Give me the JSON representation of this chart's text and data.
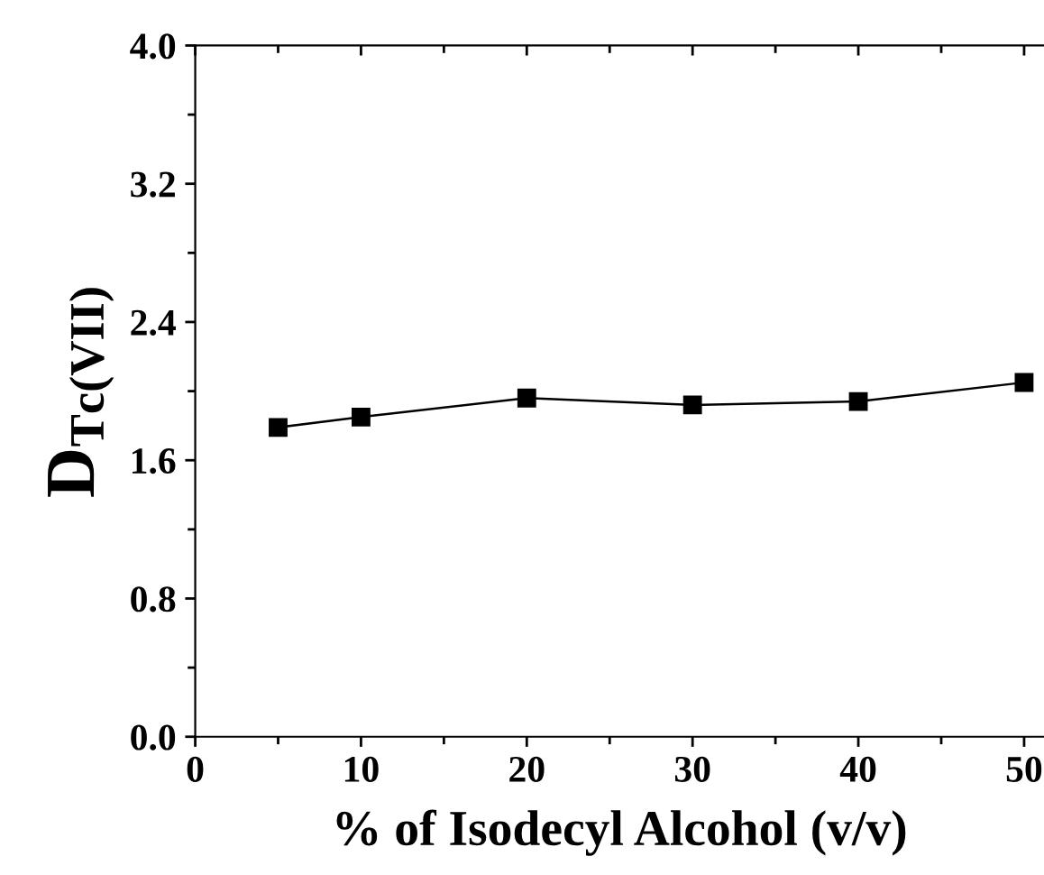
{
  "chart_data": {
    "type": "line",
    "xlabel": "% of Isodecyl Alcohol (v/v)",
    "ylabel": "D$_{Tc(VII)}$",
    "x": [
      5,
      10,
      20,
      30,
      40,
      50
    ],
    "series": [
      {
        "color": "#000000",
        "values": [
          1.79,
          1.85,
          1.96,
          1.92,
          1.94,
          2.05
        ]
      }
    ],
    "marker": "square",
    "line_style": "solid",
    "grid": false,
    "legend": false,
    "xlim": [
      0,
      51.2
    ],
    "xticks": [
      0,
      {
        "value": 5,
        "label": null
      },
      10,
      {
        "value": 15,
        "label": null
      },
      20,
      {
        "value": 25,
        "label": null
      },
      30,
      {
        "value": 35,
        "label": null
      },
      40,
      {
        "value": 45,
        "label": null
      },
      50
    ],
    "ylim": [
      0,
      4.0
    ],
    "yticks": [
      {
        "value": 0,
        "label": "0.0"
      },
      {
        "value": 0.4,
        "label": null
      },
      {
        "value": 0.8,
        "label": "0.8"
      },
      {
        "value": 1.2,
        "label": null
      },
      {
        "value": 1.6,
        "label": "1.6"
      },
      {
        "value": 2.0,
        "label": null
      },
      {
        "value": 2.4,
        "label": "2.4"
      },
      {
        "value": 2.8,
        "label": null
      },
      {
        "value": 3.2,
        "label": "3.2"
      },
      {
        "value": 3.6,
        "label": null
      },
      {
        "value": 4.0,
        "label": "4.0"
      }
    ]
  }
}
